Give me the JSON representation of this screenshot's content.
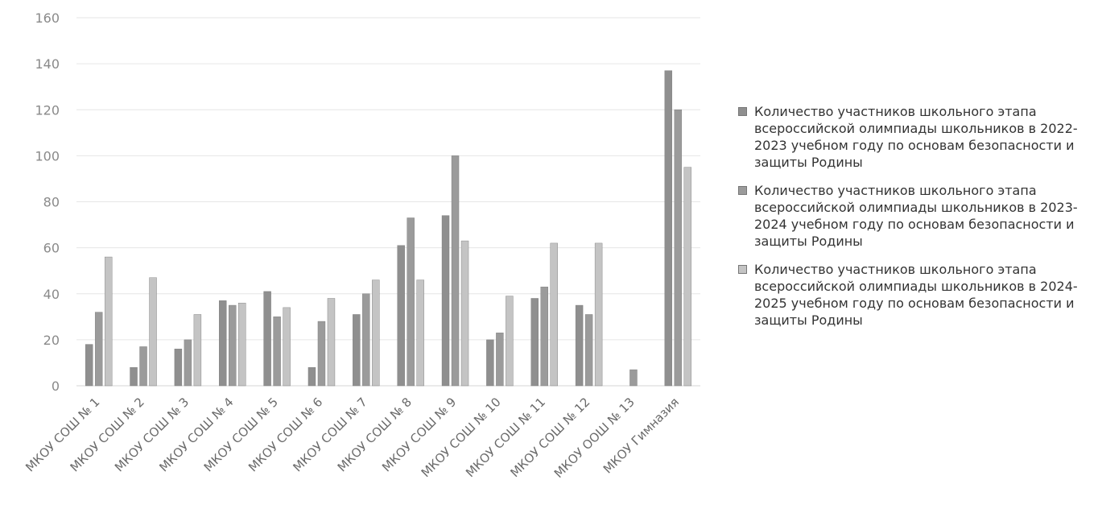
{
  "chart_data": {
    "type": "bar",
    "title": "",
    "xlabel": "",
    "ylabel": "",
    "ylim": [
      0,
      160
    ],
    "yticks": [
      0,
      20,
      40,
      60,
      80,
      100,
      120,
      140,
      160
    ],
    "grid": true,
    "legend_position": "right",
    "categories": [
      "МКОУ СОШ № 1",
      "МКОУ СОШ № 2",
      "МКОУ СОШ № 3",
      "МКОУ СОШ № 4",
      "МКОУ СОШ № 5",
      "МКОУ СОШ № 6",
      "МКОУ СОШ № 7",
      "МКОУ СОШ № 8",
      "МКОУ СОШ № 9",
      "МКОУ СОШ № 10",
      "МКОУ СОШ № 11",
      "МКОУ СОШ № 12",
      "МКОУ ООШ № 13",
      "МКОУ Гимназия"
    ],
    "series": [
      {
        "name": "Количество участников школьного этапа всероссийской олимпиады школьников в 2022-2023 учебном году по основам безопасности и защиты Родины",
        "color": "#8f8f8f",
        "values": [
          18,
          8,
          16,
          37,
          41,
          8,
          31,
          61,
          74,
          20,
          38,
          35,
          0,
          137
        ]
      },
      {
        "name": "Количество участников школьного этапа всероссийской олимпиады школьников в 2023-2024 учебном году по основам безопасности и защиты Родины",
        "color": "#9b9b9b",
        "values": [
          32,
          17,
          20,
          35,
          30,
          28,
          40,
          73,
          100,
          23,
          43,
          31,
          7,
          120
        ]
      },
      {
        "name": "Количество участников школьного этапа всероссийской олимпиады школьников в 2024-2025 учебном году по основам безопасности и защиты Родины",
        "color": "#c4c4c4",
        "values": [
          56,
          47,
          31,
          36,
          34,
          38,
          46,
          46,
          63,
          39,
          62,
          62,
          0,
          95
        ]
      }
    ]
  }
}
